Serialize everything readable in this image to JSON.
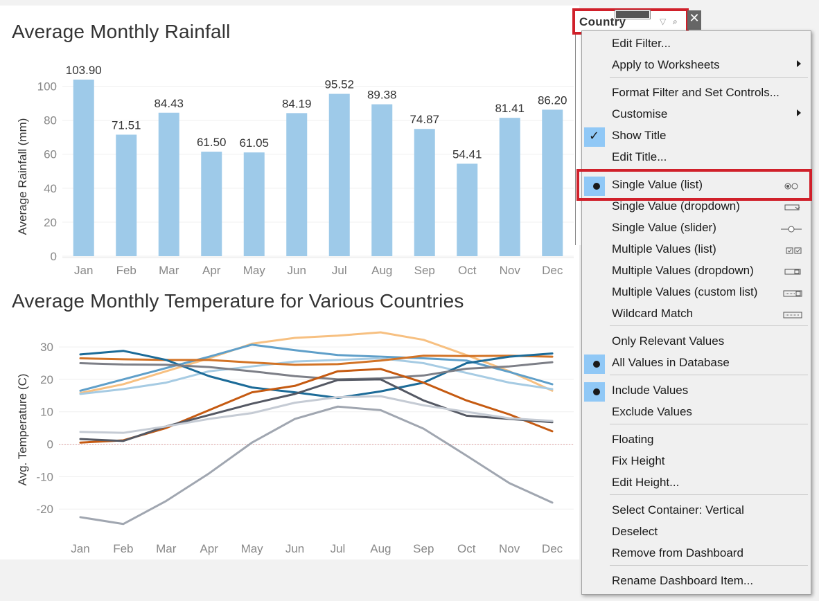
{
  "dashboard": {
    "rainfall_title": "Average Monthly Rainfall",
    "temperature_title": "Average Monthly Temperature for Various Countries"
  },
  "chart_data": [
    {
      "type": "bar",
      "title": "Average Monthly Rainfall",
      "ylabel": "Average Rainfall (mm)",
      "categories": [
        "Jan",
        "Feb",
        "Mar",
        "Apr",
        "May",
        "Jun",
        "Jul",
        "Aug",
        "Sep",
        "Oct",
        "Nov",
        "Dec"
      ],
      "values": [
        103.9,
        71.51,
        84.43,
        61.5,
        61.05,
        84.19,
        95.52,
        89.38,
        74.87,
        54.41,
        81.41,
        86.2
      ],
      "value_labels": [
        "103.90",
        "71.51",
        "84.43",
        "61.50",
        "61.05",
        "84.19",
        "95.52",
        "89.38",
        "74.87",
        "54.41",
        "81.41",
        "86.20"
      ],
      "y_ticks": [
        "0",
        "20",
        "40",
        "60",
        "80",
        "100"
      ],
      "ylim": [
        0,
        110
      ],
      "color": "#9ecae9",
      "grid": true
    },
    {
      "type": "line",
      "title": "Average Monthly Temperature for Various Countries",
      "ylabel": "Avg. Temperature (C)",
      "categories": [
        "Jan",
        "Feb",
        "Mar",
        "Apr",
        "May",
        "Jun",
        "Jul",
        "Aug",
        "Sep",
        "Oct",
        "Nov",
        "Dec"
      ],
      "y_ticks": [
        "-20",
        "-10",
        "0",
        "10",
        "20",
        "30"
      ],
      "ylim": [
        -27,
        36
      ],
      "grid": true,
      "zero_line": true,
      "series": [
        {
          "color": "#f7c081",
          "values": [
            15.8,
            18.5,
            22.5,
            26.5,
            31,
            32.8,
            33.5,
            34.5,
            32.2,
            27.5,
            22.5,
            16.5
          ]
        },
        {
          "color": "#5f9fc9",
          "values": [
            16.5,
            20,
            23.5,
            27,
            30.7,
            29,
            27.5,
            27,
            26.5,
            25.8,
            22.3,
            18.5
          ]
        },
        {
          "color": "#a6cbe3",
          "values": [
            15.5,
            17,
            19,
            22.5,
            24,
            25.5,
            26,
            26.5,
            25,
            22,
            19,
            17
          ]
        },
        {
          "color": "#d27326",
          "values": [
            26.5,
            26.2,
            26,
            26,
            25.2,
            24.5,
            24.7,
            25.8,
            27.3,
            27.2,
            27.3,
            27
          ]
        },
        {
          "color": "#1c6b98",
          "values": [
            27.7,
            28.8,
            26,
            21,
            17.5,
            16,
            14.3,
            16.3,
            19,
            25,
            27,
            28
          ]
        },
        {
          "color": "#7d7f87",
          "values": [
            25,
            24.6,
            24.5,
            23.8,
            22.5,
            21,
            20,
            20.3,
            21.2,
            23.3,
            24,
            25.3
          ]
        },
        {
          "color": "#c55a11",
          "values": [
            0.5,
            1.2,
            5,
            10.5,
            16,
            18,
            22.5,
            23.2,
            19,
            13.5,
            9.2,
            4
          ]
        },
        {
          "color": "#545863",
          "values": [
            1.6,
            1,
            5.5,
            9,
            12.5,
            15.5,
            19.8,
            20,
            13.5,
            8.8,
            7.8,
            6.8
          ]
        },
        {
          "color": "#c5cbd4",
          "values": [
            3.8,
            3.5,
            5.5,
            7.8,
            9.6,
            12.8,
            14.5,
            14.8,
            12,
            10,
            8,
            7.2
          ]
        },
        {
          "color": "#a0a6b0",
          "values": [
            -22.5,
            -24.6,
            -17.5,
            -9,
            0.5,
            7.8,
            11.6,
            10.5,
            4.8,
            -3.5,
            -12,
            -18
          ]
        }
      ]
    }
  ],
  "filter": {
    "title": "Country",
    "close_glyph": "✕",
    "funnel_glyph": "▽",
    "search_glyph": "⌕"
  },
  "context_menu": {
    "check_glyph": "✓",
    "items": [
      {
        "label": "Edit Filter..."
      },
      {
        "label": "Apply to Worksheets",
        "submenu": true
      },
      {
        "label": "Format Filter and Set Controls..."
      },
      {
        "label": "Customise",
        "submenu": true
      },
      {
        "label": "Show Title",
        "checked": true
      },
      {
        "label": "Edit Title..."
      },
      {
        "label": "Single Value (list)",
        "selected": true
      },
      {
        "label": "Single Value (dropdown)"
      },
      {
        "label": "Single Value (slider)"
      },
      {
        "label": "Multiple Values (list)"
      },
      {
        "label": "Multiple Values (dropdown)"
      },
      {
        "label": "Multiple Values (custom list)"
      },
      {
        "label": "Wildcard Match"
      },
      {
        "label": "Only Relevant Values"
      },
      {
        "label": "All Values in Database",
        "selected": true
      },
      {
        "label": "Include Values",
        "selected": true
      },
      {
        "label": "Exclude Values"
      },
      {
        "label": "Floating"
      },
      {
        "label": "Fix Height"
      },
      {
        "label": "Edit Height..."
      },
      {
        "label": "Select Container: Vertical"
      },
      {
        "label": "Deselect"
      },
      {
        "label": "Remove from Dashboard"
      },
      {
        "label": "Rename Dashboard Item..."
      }
    ]
  }
}
